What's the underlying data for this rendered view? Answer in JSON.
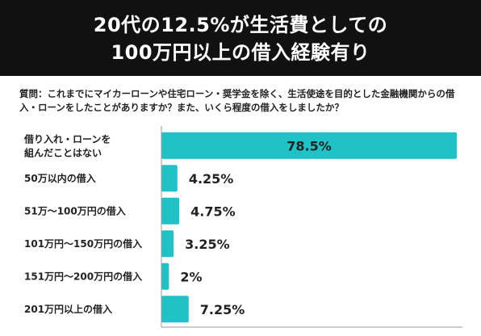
{
  "header": {
    "title_line1": "20代の12.5%が生活費としての",
    "title_line2": "100万円以上の借入経験有り"
  },
  "question": "質問：これまでにマイカーローンや住宅ローン・奨学金を除く、生活使途を目的とした金融機関からの借入・ローンをしたことがありますか？また、いくら程度の借入をしましたか？",
  "colors": {
    "bar": "#1fc2c6",
    "header_bg": "#111111",
    "axis": "#999999"
  },
  "chart_data": {
    "type": "bar",
    "orientation": "horizontal",
    "categories": [
      [
        "借り入れ・ローンを",
        "組んだことはない"
      ],
      [
        "50万以内の借入"
      ],
      [
        "51万〜100万円の借入"
      ],
      [
        "101万円〜150万円の借入"
      ],
      [
        "151万円〜200万円の借入"
      ],
      [
        "201万円以上の借入"
      ]
    ],
    "values": [
      78.5,
      4.25,
      4.75,
      3.25,
      2,
      7.25
    ],
    "value_labels": [
      "78.5%",
      "4.25%",
      "4.75%",
      "3.25%",
      "2%",
      "7.25%"
    ],
    "xlim": [
      0,
      80
    ],
    "xticks": [
      0,
      20,
      40,
      60,
      80
    ],
    "xtick_labels": [
      "0%",
      "20%",
      "40%",
      "60%",
      "80%"
    ],
    "grid": false
  }
}
